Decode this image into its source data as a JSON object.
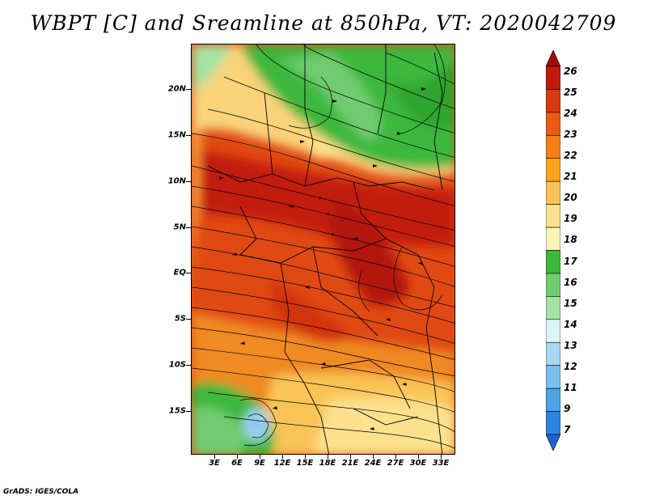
{
  "title": "WBPT [C] and Sreamline at 850hPa, VT: 2020042709",
  "footer": "GrADS: IGES/COLA",
  "lat_labels": [
    "20N",
    "15N",
    "10N",
    "5N",
    "EQ",
    "5S",
    "10S",
    "15S"
  ],
  "lon_labels": [
    "3E",
    "6E",
    "9E",
    "12E",
    "15E",
    "18E",
    "21E",
    "24E",
    "27E",
    "30E",
    "33E"
  ],
  "colorbar": {
    "labels": [
      "26",
      "25",
      "24",
      "23",
      "22",
      "21",
      "20",
      "19",
      "18",
      "17",
      "16",
      "15",
      "14",
      "13",
      "12",
      "11",
      "9",
      "7"
    ],
    "colors": [
      "#a50a0a",
      "#c21b0b",
      "#d93a10",
      "#ec5a12",
      "#f57f16",
      "#f8a41c",
      "#f9c457",
      "#fde18d",
      "#fdf2b6",
      "#3db83d",
      "#71cc71",
      "#a4e3a4",
      "#daf5f5",
      "#a8d8f5",
      "#7bbff0",
      "#4fa4e8",
      "#2f83df",
      "#1f62d3"
    ]
  }
}
